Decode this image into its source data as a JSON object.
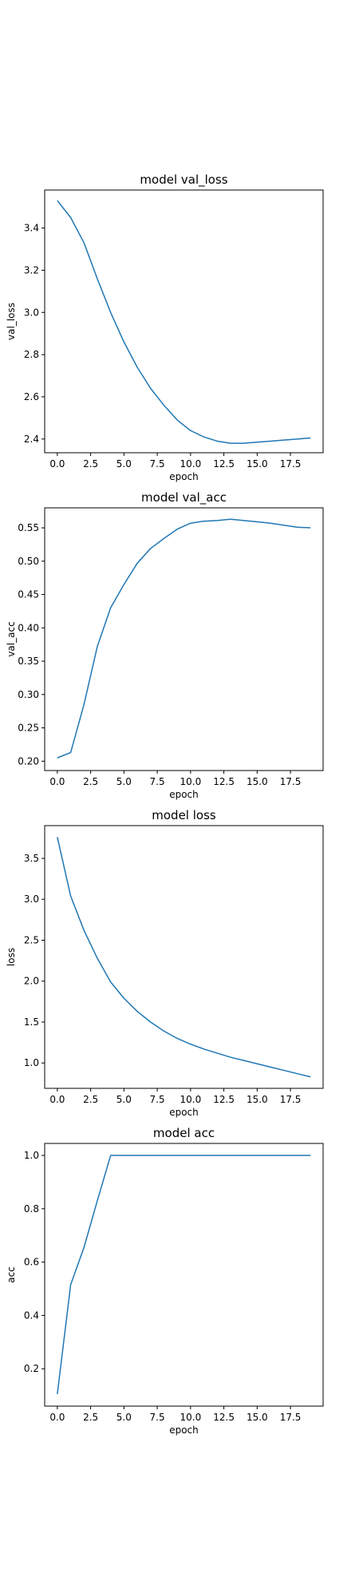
{
  "figure": {
    "background": "#ffffff",
    "line_color": "#1f77b4"
  },
  "chart_data": [
    {
      "type": "line",
      "title": "model val_loss",
      "xlabel": "epoch",
      "ylabel": "val_loss",
      "xlim": [
        -0.95,
        19.95
      ],
      "ylim": [
        2.335,
        3.58
      ],
      "xticks": [
        0.0,
        2.5,
        5.0,
        7.5,
        10.0,
        12.5,
        15.0,
        17.5
      ],
      "xtick_labels": [
        "0.0",
        "2.5",
        "5.0",
        "7.5",
        "10.0",
        "12.5",
        "15.0",
        "17.5"
      ],
      "yticks": [
        2.4,
        2.6,
        2.8,
        3.0,
        3.2,
        3.4
      ],
      "ytick_labels": [
        "2.4",
        "2.6",
        "2.8",
        "3.0",
        "3.2",
        "3.4"
      ],
      "grid": false,
      "x": [
        0,
        1,
        2,
        3,
        4,
        5,
        6,
        7,
        8,
        9,
        10,
        11,
        12,
        13,
        14,
        15,
        16,
        17,
        18,
        19
      ],
      "series": [
        {
          "values": [
            3.53,
            3.45,
            3.33,
            3.16,
            3.0,
            2.86,
            2.74,
            2.64,
            2.56,
            2.49,
            2.44,
            2.41,
            2.39,
            2.38,
            2.38,
            2.385,
            2.39,
            2.395,
            2.4,
            2.405
          ]
        }
      ]
    },
    {
      "type": "line",
      "title": "model val_acc",
      "xlabel": "epoch",
      "ylabel": "val_acc",
      "xlim": [
        -0.95,
        19.95
      ],
      "ylim": [
        0.186,
        0.58
      ],
      "xticks": [
        0.0,
        2.5,
        5.0,
        7.5,
        10.0,
        12.5,
        15.0,
        17.5
      ],
      "xtick_labels": [
        "0.0",
        "2.5",
        "5.0",
        "7.5",
        "10.0",
        "12.5",
        "15.0",
        "17.5"
      ],
      "yticks": [
        0.2,
        0.25,
        0.3,
        0.35,
        0.4,
        0.45,
        0.5,
        0.55
      ],
      "ytick_labels": [
        "0.20",
        "0.25",
        "0.30",
        "0.35",
        "0.40",
        "0.45",
        "0.50",
        "0.55"
      ],
      "grid": false,
      "x": [
        0,
        1,
        2,
        3,
        4,
        5,
        6,
        7,
        8,
        9,
        10,
        11,
        12,
        13,
        14,
        15,
        16,
        17,
        18,
        19
      ],
      "series": [
        {
          "values": [
            0.205,
            0.213,
            0.285,
            0.372,
            0.43,
            0.465,
            0.497,
            0.519,
            0.534,
            0.548,
            0.557,
            0.56,
            0.561,
            0.563,
            0.561,
            0.559,
            0.557,
            0.554,
            0.551,
            0.55
          ]
        }
      ]
    },
    {
      "type": "line",
      "title": "model loss",
      "xlabel": "epoch",
      "ylabel": "loss",
      "xlim": [
        -0.95,
        19.95
      ],
      "ylim": [
        0.69,
        3.9
      ],
      "xticks": [
        0.0,
        2.5,
        5.0,
        7.5,
        10.0,
        12.5,
        15.0,
        17.5
      ],
      "xtick_labels": [
        "0.0",
        "2.5",
        "5.0",
        "7.5",
        "10.0",
        "12.5",
        "15.0",
        "17.5"
      ],
      "yticks": [
        1.0,
        1.5,
        2.0,
        2.5,
        3.0,
        3.5
      ],
      "ytick_labels": [
        "1.0",
        "1.5",
        "2.0",
        "2.5",
        "3.0",
        "3.5"
      ],
      "grid": false,
      "x": [
        0,
        1,
        2,
        3,
        4,
        5,
        6,
        7,
        8,
        9,
        10,
        11,
        12,
        13,
        14,
        15,
        16,
        17,
        18,
        19
      ],
      "series": [
        {
          "values": [
            3.76,
            3.04,
            2.62,
            2.28,
            1.99,
            1.79,
            1.63,
            1.5,
            1.39,
            1.3,
            1.23,
            1.17,
            1.12,
            1.07,
            1.03,
            0.99,
            0.95,
            0.91,
            0.87,
            0.83
          ]
        }
      ]
    },
    {
      "type": "line",
      "title": "model acc",
      "xlabel": "epoch",
      "ylabel": "acc",
      "xlim": [
        -0.95,
        19.95
      ],
      "ylim": [
        0.06,
        1.045
      ],
      "xticks": [
        0.0,
        2.5,
        5.0,
        7.5,
        10.0,
        12.5,
        15.0,
        17.5
      ],
      "xtick_labels": [
        "0.0",
        "2.5",
        "5.0",
        "7.5",
        "10.0",
        "12.5",
        "15.0",
        "17.5"
      ],
      "yticks": [
        0.2,
        0.4,
        0.6,
        0.8,
        1.0
      ],
      "ytick_labels": [
        "0.2",
        "0.4",
        "0.6",
        "0.8",
        "1.0"
      ],
      "grid": false,
      "x": [
        0,
        1,
        2,
        3,
        4,
        5,
        6,
        7,
        8,
        9,
        10,
        11,
        12,
        13,
        14,
        15,
        16,
        17,
        18,
        19
      ],
      "series": [
        {
          "values": [
            0.105,
            0.515,
            0.655,
            0.83,
            1.0,
            1.0,
            1.0,
            1.0,
            1.0,
            1.0,
            1.0,
            1.0,
            1.0,
            1.0,
            1.0,
            1.0,
            1.0,
            1.0,
            1.0,
            1.0
          ]
        }
      ]
    }
  ]
}
